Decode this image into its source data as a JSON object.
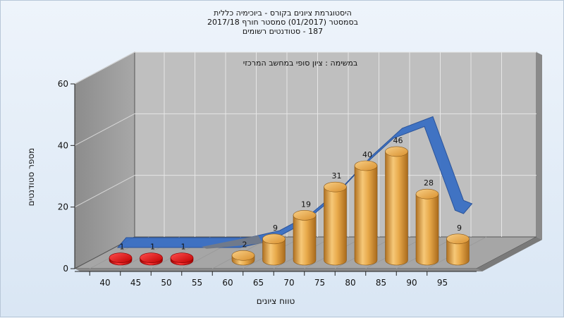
{
  "header": {
    "title_line1": "היסטוגרמת ציונים בקורס - ביוכימיה כללית",
    "title_line2": "בסמסטר  (01/2017)  סמסטר חורף  2017/18",
    "title_line3": "187 - סטודנטים רשומים"
  },
  "chart_data": {
    "type": "bar",
    "title": "היסטוגרמת ציונים בקורס - ביוכימיה כללית",
    "subtitle": "במשימה : ציון סופי במחשב המרכזי",
    "xlabel": "טווח ציונים",
    "ylabel": "מספר סטודנטים",
    "ylim": [
      0,
      60
    ],
    "yticks": [
      0,
      20,
      40,
      60
    ],
    "grid": true,
    "categories": [
      "40",
      "45",
      "50",
      "55",
      "60",
      "65",
      "70",
      "75",
      "80",
      "85",
      "90",
      "95"
    ],
    "values": [
      1,
      1,
      1,
      0,
      2,
      9,
      19,
      31,
      40,
      46,
      28,
      9
    ],
    "value_labels": [
      "1",
      "1",
      "1",
      "",
      "2",
      "9",
      "19",
      "31",
      "40",
      "46",
      "28",
      "9"
    ],
    "bar_colors": [
      "#e01010",
      "#e01010",
      "#e01010",
      "#e8a040",
      "#e8a040",
      "#e8a040",
      "#e8a040",
      "#e8a040",
      "#e8a040",
      "#e8a040",
      "#e8a040",
      "#e8a040"
    ],
    "curve_color": "#3a6fc4",
    "curve_values": [
      0,
      0,
      0,
      0,
      0,
      3,
      10,
      21,
      35,
      47,
      52,
      16
    ],
    "ribbon_style": "3d"
  }
}
